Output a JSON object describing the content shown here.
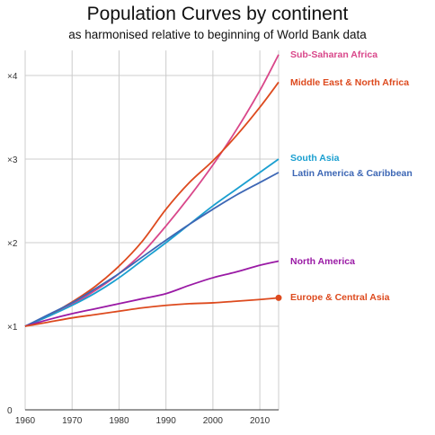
{
  "chart_data": {
    "type": "line",
    "title": "Population Curves by continent",
    "subtitle": "as harmonised relative to beginning of World Bank data",
    "xlabel": "",
    "ylabel": "",
    "xlim": [
      1960,
      2014
    ],
    "ylim": [
      0,
      4.3
    ],
    "grid": true,
    "x_ticks": [
      1960,
      1970,
      1980,
      1990,
      2000,
      2010
    ],
    "x_tick_labels": [
      "1960",
      "1970",
      "1980",
      "1990",
      "2000",
      "2010"
    ],
    "y_ticks": [
      0,
      1,
      2,
      3,
      4
    ],
    "y_tick_labels": [
      "0",
      "×1",
      "×2",
      "×3",
      "×4"
    ],
    "x": [
      1960,
      1965,
      1970,
      1975,
      1980,
      1985,
      1990,
      1995,
      2000,
      2005,
      2010,
      2014
    ],
    "series": [
      {
        "name": "Sub-Saharan Africa",
        "color": "#d9478a",
        "values": [
          1.0,
          1.12,
          1.26,
          1.43,
          1.63,
          1.88,
          2.2,
          2.55,
          2.93,
          3.35,
          3.82,
          4.25
        ]
      },
      {
        "name": "Middle East & North Africa",
        "color": "#dd4a1e",
        "values": [
          1.0,
          1.13,
          1.29,
          1.48,
          1.72,
          2.02,
          2.4,
          2.72,
          2.98,
          3.28,
          3.62,
          3.92
        ]
      },
      {
        "name": "South Asia",
        "color": "#1a9fd0",
        "values": [
          1.0,
          1.12,
          1.25,
          1.4,
          1.58,
          1.79,
          2.0,
          2.22,
          2.44,
          2.64,
          2.84,
          3.0
        ]
      },
      {
        "name": "Latin America & Caribbean",
        "color": "#3d67b5",
        "values": [
          1.0,
          1.14,
          1.28,
          1.45,
          1.63,
          1.83,
          2.03,
          2.22,
          2.4,
          2.57,
          2.72,
          2.84
        ]
      },
      {
        "name": "North America",
        "color": "#9a1aa5",
        "values": [
          1.0,
          1.08,
          1.15,
          1.21,
          1.27,
          1.33,
          1.39,
          1.49,
          1.58,
          1.65,
          1.73,
          1.78
        ]
      },
      {
        "name": "Europe & Central Asia",
        "color": "#dd4a1e",
        "values": [
          1.0,
          1.05,
          1.1,
          1.14,
          1.18,
          1.22,
          1.25,
          1.27,
          1.28,
          1.3,
          1.32,
          1.34
        ],
        "end_marker": true
      }
    ]
  }
}
